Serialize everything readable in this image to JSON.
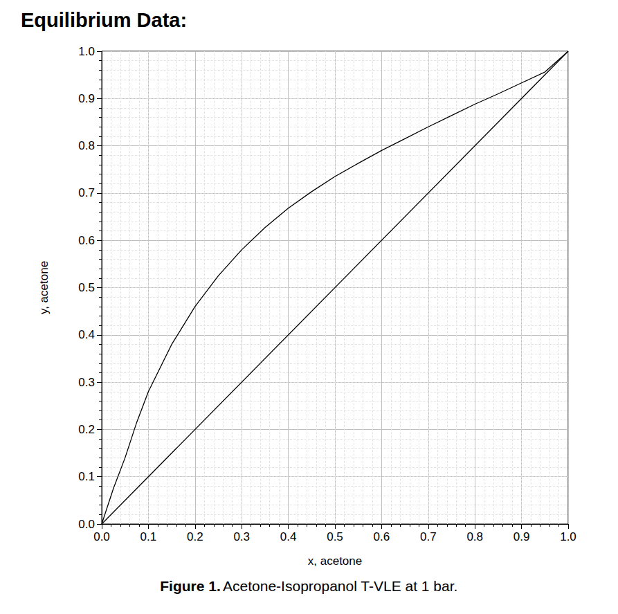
{
  "chart_data": {
    "type": "line",
    "title": "Equilibrium Data:",
    "caption": {
      "label": "Figure 1.",
      "text": "Acetone-Isopropanol T-VLE at 1 bar."
    },
    "x_label": "x, acetone",
    "y_label": "y, acetone",
    "series": [
      {
        "x": [
          0,
          0.025,
          0.05,
          0.075,
          0.1,
          0.15,
          0.2,
          0.25,
          0.3,
          0.35,
          0.4,
          0.45,
          0.5,
          0.55,
          0.6,
          0.65,
          0.7,
          0.75,
          0.8,
          0.85,
          0.9,
          0.95,
          1.0
        ],
        "values": [
          0,
          0.075,
          0.14,
          0.215,
          0.28,
          0.38,
          0.46,
          0.525,
          0.58,
          0.627,
          0.668,
          0.703,
          0.735,
          0.763,
          0.79,
          0.815,
          0.84,
          0.864,
          0.888,
          0.91,
          0.933,
          0.956,
          1.0
        ],
        "color": "#000000",
        "line_style": "solid",
        "marker": "none"
      },
      {
        "x": [
          0,
          1.0
        ],
        "values": [
          0,
          1.0
        ],
        "color": "#000000",
        "line_style": "solid",
        "marker": "none"
      }
    ],
    "xlim": [
      0,
      1.0
    ],
    "ylim": [
      0,
      1.0
    ],
    "xticks": [
      {
        "value": 0,
        "label": "0.0"
      },
      {
        "value": 0.1,
        "label": "0.1"
      },
      {
        "value": 0.2,
        "label": "0.2"
      },
      {
        "value": 0.3,
        "label": "0.3"
      },
      {
        "value": 0.4,
        "label": "0.4"
      },
      {
        "value": 0.5,
        "label": "0.5"
      },
      {
        "value": 0.6,
        "label": "0.6"
      },
      {
        "value": 0.7,
        "label": "0.7"
      },
      {
        "value": 0.8,
        "label": "0.8"
      },
      {
        "value": 0.9,
        "label": "0.9"
      },
      {
        "value": 1.0,
        "label": "1.0"
      }
    ],
    "yticks": [
      {
        "value": 0,
        "label": "0.0"
      },
      {
        "value": 0.1,
        "label": "0.1"
      },
      {
        "value": 0.2,
        "label": "0.2"
      },
      {
        "value": 0.3,
        "label": "0.3"
      },
      {
        "value": 0.4,
        "label": "0.4"
      },
      {
        "value": 0.5,
        "label": "0.5"
      },
      {
        "value": 0.6,
        "label": "0.6"
      },
      {
        "value": 0.7,
        "label": "0.7"
      },
      {
        "value": 0.8,
        "label": "0.8"
      },
      {
        "value": 0.9,
        "label": "0.9"
      },
      {
        "value": 1.0,
        "label": "1.0"
      }
    ],
    "grid": true
  }
}
